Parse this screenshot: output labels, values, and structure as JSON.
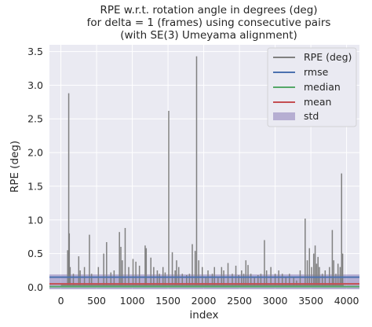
{
  "chart_data": {
    "type": "line",
    "title_lines": [
      "RPE w.r.t. rotation angle in degrees (deg)",
      "for delta = 1 (frames) using consecutive pairs",
      "(with SE(3) Umeyama alignment)"
    ],
    "xlabel": "index",
    "ylabel": "RPE (deg)",
    "xlim": [
      -160,
      4180
    ],
    "ylim": [
      -0.03,
      3.6
    ],
    "xticks": [
      0,
      500,
      1000,
      1500,
      2000,
      2500,
      3000,
      3500,
      4000
    ],
    "yticks": [
      0.0,
      0.5,
      1.0,
      1.5,
      2.0,
      2.5,
      3.0,
      3.5
    ],
    "xtick_labels": [
      "0",
      "500",
      "1000",
      "1500",
      "2000",
      "2500",
      "3000",
      "3500",
      "4000"
    ],
    "ytick_labels": [
      "0.0",
      "0.5",
      "1.0",
      "1.5",
      "2.0",
      "2.5",
      "3.0",
      "3.5"
    ],
    "grid": true,
    "legend_position": "top-right",
    "series": [
      {
        "name": "RPE (deg)",
        "kind": "series",
        "color": "#808080"
      },
      {
        "name": "rmse",
        "kind": "hline",
        "value": 0.15,
        "color": "#4c72b0"
      },
      {
        "name": "median",
        "kind": "hline",
        "value": 0.01,
        "color": "#55a868"
      },
      {
        "name": "mean",
        "kind": "hline",
        "value": 0.05,
        "color": "#c44e52"
      },
      {
        "name": "std",
        "kind": "band",
        "low": -0.09,
        "high": 0.19,
        "color": "#8172b2"
      }
    ],
    "n_points": 3960,
    "baseline_level": 0.03,
    "spikes": [
      [
        95,
        0.55
      ],
      [
        110,
        2.88
      ],
      [
        118,
        0.8
      ],
      [
        130,
        0.3
      ],
      [
        175,
        0.2
      ],
      [
        250,
        0.46
      ],
      [
        270,
        0.25
      ],
      [
        330,
        0.3
      ],
      [
        400,
        0.78
      ],
      [
        430,
        0.2
      ],
      [
        525,
        0.3
      ],
      [
        600,
        0.5
      ],
      [
        640,
        0.67
      ],
      [
        700,
        0.22
      ],
      [
        745,
        0.25
      ],
      [
        820,
        0.82
      ],
      [
        840,
        0.6
      ],
      [
        860,
        0.4
      ],
      [
        900,
        0.88
      ],
      [
        950,
        0.3
      ],
      [
        1010,
        0.42
      ],
      [
        1050,
        0.38
      ],
      [
        1100,
        0.32
      ],
      [
        1180,
        0.62
      ],
      [
        1195,
        0.58
      ],
      [
        1260,
        0.44
      ],
      [
        1300,
        0.3
      ],
      [
        1350,
        0.25
      ],
      [
        1380,
        0.2
      ],
      [
        1430,
        0.3
      ],
      [
        1460,
        0.22
      ],
      [
        1510,
        2.62
      ],
      [
        1560,
        0.52
      ],
      [
        1600,
        0.25
      ],
      [
        1620,
        0.4
      ],
      [
        1650,
        0.3
      ],
      [
        1700,
        0.2
      ],
      [
        1760,
        0.18
      ],
      [
        1800,
        0.2
      ],
      [
        1840,
        0.64
      ],
      [
        1880,
        0.54
      ],
      [
        1900,
        3.43
      ],
      [
        1930,
        0.4
      ],
      [
        1980,
        0.3
      ],
      [
        2030,
        0.15
      ],
      [
        2060,
        0.25
      ],
      [
        2120,
        0.2
      ],
      [
        2150,
        0.3
      ],
      [
        2200,
        0.15
      ],
      [
        2250,
        0.3
      ],
      [
        2280,
        0.25
      ],
      [
        2340,
        0.36
      ],
      [
        2400,
        0.2
      ],
      [
        2450,
        0.32
      ],
      [
        2490,
        0.18
      ],
      [
        2530,
        0.25
      ],
      [
        2560,
        0.2
      ],
      [
        2590,
        0.4
      ],
      [
        2620,
        0.33
      ],
      [
        2660,
        0.2
      ],
      [
        2710,
        0.15
      ],
      [
        2760,
        0.18
      ],
      [
        2800,
        0.2
      ],
      [
        2850,
        0.7
      ],
      [
        2880,
        0.25
      ],
      [
        2940,
        0.3
      ],
      [
        3000,
        0.2
      ],
      [
        3050,
        0.25
      ],
      [
        3100,
        0.2
      ],
      [
        3150,
        0.15
      ],
      [
        3200,
        0.2
      ],
      [
        3260,
        0.15
      ],
      [
        3300,
        0.1
      ],
      [
        3350,
        0.25
      ],
      [
        3420,
        1.02
      ],
      [
        3450,
        0.4
      ],
      [
        3480,
        0.58
      ],
      [
        3510,
        0.3
      ],
      [
        3540,
        0.5
      ],
      [
        3560,
        0.62
      ],
      [
        3580,
        0.35
      ],
      [
        3600,
        0.45
      ],
      [
        3620,
        0.3
      ],
      [
        3660,
        0.2
      ],
      [
        3700,
        0.25
      ],
      [
        3760,
        0.3
      ],
      [
        3800,
        0.85
      ],
      [
        3820,
        0.4
      ],
      [
        3850,
        0.2
      ],
      [
        3880,
        0.35
      ],
      [
        3910,
        0.3
      ],
      [
        3930,
        1.69
      ],
      [
        3945,
        0.5
      ]
    ]
  }
}
